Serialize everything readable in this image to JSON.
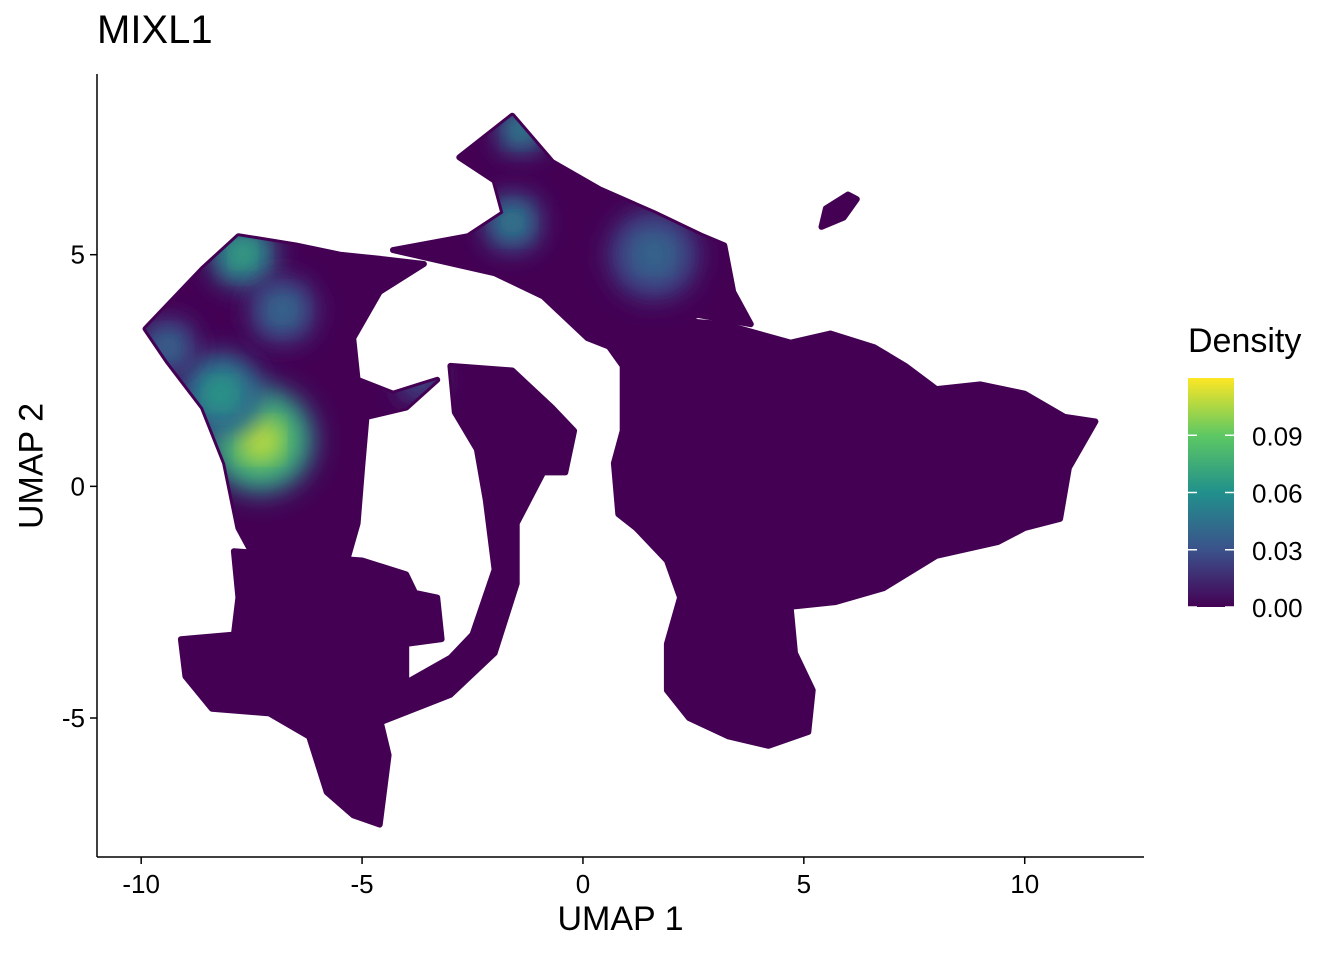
{
  "chart_data": {
    "type": "scatter",
    "title": "MIXL1",
    "xlabel": "UMAP 1",
    "ylabel": "UMAP 2",
    "xlim": [
      -11,
      12.7
    ],
    "ylim": [
      -8,
      8.9
    ],
    "x_ticks": [
      -10,
      -5,
      0,
      5,
      10
    ],
    "x_tick_labels": [
      "-10",
      "-5",
      "0",
      "5",
      "10"
    ],
    "y_ticks": [
      -5,
      0,
      5
    ],
    "y_tick_labels": [
      "-5",
      "0",
      "5"
    ],
    "grid": false,
    "legend": {
      "title": "Density",
      "placement": "right",
      "range": [
        0.0,
        0.12
      ],
      "ticks": [
        0.0,
        0.03,
        0.06,
        0.09
      ],
      "tick_labels": [
        "0.00",
        "0.03",
        "0.06",
        "0.09"
      ],
      "colormap": [
        "#440154",
        "#3b528b",
        "#21908c",
        "#5dc863",
        "#fde725"
      ]
    },
    "regions": [
      {
        "name": "left-fan",
        "density_peak": 0.12,
        "outline": [
          [
            -9.9,
            3.4
          ],
          [
            -8.6,
            4.7
          ],
          [
            -7.8,
            5.4
          ],
          [
            -6.5,
            5.2
          ],
          [
            -5.5,
            5.0
          ],
          [
            -4.5,
            4.9
          ],
          [
            -3.6,
            4.8
          ],
          [
            -4.6,
            4.2
          ],
          [
            -5.2,
            3.2
          ],
          [
            -5.1,
            2.3
          ],
          [
            -4.3,
            2.0
          ],
          [
            -3.3,
            2.3
          ],
          [
            -4.0,
            1.7
          ],
          [
            -4.9,
            1.5
          ],
          [
            -5.0,
            0.4
          ],
          [
            -5.1,
            -0.8
          ],
          [
            -5.4,
            -1.8
          ],
          [
            -7.4,
            -1.6
          ],
          [
            -7.8,
            -0.9
          ],
          [
            -8.1,
            0.5
          ],
          [
            -8.6,
            1.7
          ],
          [
            -9.4,
            2.7
          ]
        ]
      },
      {
        "name": "bottom-left-lobe",
        "density_peak": 0.01,
        "outline": [
          [
            -7.9,
            -1.4
          ],
          [
            -5.0,
            -1.6
          ],
          [
            -4.0,
            -1.9
          ],
          [
            -3.8,
            -2.3
          ],
          [
            -3.3,
            -2.4
          ],
          [
            -3.2,
            -3.3
          ],
          [
            -4.0,
            -3.4
          ],
          [
            -4.0,
            -4.4
          ],
          [
            -4.6,
            -5.0
          ],
          [
            -4.4,
            -5.8
          ],
          [
            -4.6,
            -7.3
          ],
          [
            -5.2,
            -7.1
          ],
          [
            -5.8,
            -6.6
          ],
          [
            -6.2,
            -5.4
          ],
          [
            -7.1,
            -4.9
          ],
          [
            -8.4,
            -4.8
          ],
          [
            -9.0,
            -4.1
          ],
          [
            -9.1,
            -3.3
          ],
          [
            -7.9,
            -3.2
          ],
          [
            -7.8,
            -2.4
          ]
        ]
      },
      {
        "name": "curved-arc",
        "density_peak": 0.01,
        "outline": [
          [
            -3.0,
            2.6
          ],
          [
            -1.6,
            2.5
          ],
          [
            -0.7,
            1.7
          ],
          [
            -0.2,
            1.2
          ],
          [
            -0.4,
            0.3
          ],
          [
            -0.9,
            0.3
          ],
          [
            -1.5,
            -0.8
          ],
          [
            -1.5,
            -2.1
          ],
          [
            -2.0,
            -3.6
          ],
          [
            -3.0,
            -4.5
          ],
          [
            -4.6,
            -5.1
          ],
          [
            -4.3,
            -4.4
          ],
          [
            -3.0,
            -3.7
          ],
          [
            -2.5,
            -3.2
          ],
          [
            -2.0,
            -1.8
          ],
          [
            -2.2,
            -0.3
          ],
          [
            -2.4,
            0.8
          ],
          [
            -2.9,
            1.6
          ]
        ]
      },
      {
        "name": "top-fan",
        "density_peak": 0.07,
        "outline": [
          [
            -4.3,
            5.1
          ],
          [
            -2.6,
            5.4
          ],
          [
            -1.8,
            5.9
          ],
          [
            -2.0,
            6.6
          ],
          [
            -2.8,
            7.1
          ],
          [
            -1.6,
            8.0
          ],
          [
            -0.7,
            7.0
          ],
          [
            0.4,
            6.4
          ],
          [
            1.6,
            5.9
          ],
          [
            2.7,
            5.4
          ],
          [
            3.2,
            5.2
          ],
          [
            3.4,
            4.2
          ],
          [
            3.8,
            3.5
          ],
          [
            2.6,
            3.7
          ],
          [
            1.6,
            3.3
          ],
          [
            0.9,
            2.9
          ],
          [
            0.1,
            3.2
          ],
          [
            -0.9,
            4.1
          ],
          [
            -2.0,
            4.6
          ]
        ]
      },
      {
        "name": "right-region",
        "density_peak": 0.01,
        "outline": [
          [
            0.3,
            3.4
          ],
          [
            1.9,
            3.6
          ],
          [
            3.2,
            3.5
          ],
          [
            4.7,
            3.1
          ],
          [
            5.6,
            3.3
          ],
          [
            6.6,
            3.0
          ],
          [
            7.3,
            2.6
          ],
          [
            8.0,
            2.1
          ],
          [
            9.0,
            2.2
          ],
          [
            10.0,
            2.0
          ],
          [
            10.9,
            1.5
          ],
          [
            11.6,
            1.4
          ],
          [
            11.0,
            0.4
          ],
          [
            10.8,
            -0.7
          ],
          [
            10.0,
            -0.9
          ],
          [
            9.4,
            -1.2
          ],
          [
            8.0,
            -1.5
          ],
          [
            6.8,
            -2.2
          ],
          [
            5.7,
            -2.5
          ],
          [
            4.7,
            -2.6
          ],
          [
            4.8,
            -3.6
          ],
          [
            5.2,
            -4.4
          ],
          [
            5.1,
            -5.3
          ],
          [
            4.2,
            -5.6
          ],
          [
            3.3,
            -5.4
          ],
          [
            2.4,
            -5.0
          ],
          [
            1.9,
            -4.4
          ],
          [
            1.9,
            -3.4
          ],
          [
            2.2,
            -2.4
          ],
          [
            1.9,
            -1.6
          ],
          [
            1.2,
            -0.9
          ],
          [
            0.8,
            -0.6
          ],
          [
            0.7,
            0.5
          ],
          [
            0.9,
            1.2
          ],
          [
            0.9,
            2.6
          ]
        ]
      },
      {
        "name": "small-cluster",
        "density_peak": 0.0,
        "outline": [
          [
            5.5,
            6.0
          ],
          [
            6.0,
            6.3
          ],
          [
            6.2,
            6.2
          ],
          [
            5.9,
            5.8
          ],
          [
            5.4,
            5.6
          ]
        ]
      }
    ],
    "hotspots": [
      {
        "x": -7.3,
        "y": 1.0,
        "density": 0.12,
        "radius": 1.2
      },
      {
        "x": -7.7,
        "y": 5.0,
        "density": 0.085,
        "radius": 0.7
      },
      {
        "x": -8.2,
        "y": 2.0,
        "density": 0.075,
        "radius": 0.9
      },
      {
        "x": -9.4,
        "y": 3.0,
        "density": 0.05,
        "radius": 0.6
      },
      {
        "x": -6.8,
        "y": 3.8,
        "density": 0.05,
        "radius": 0.7
      },
      {
        "x": -1.4,
        "y": 7.7,
        "density": 0.07,
        "radius": 0.5
      },
      {
        "x": -1.6,
        "y": 5.7,
        "density": 0.065,
        "radius": 0.6
      },
      {
        "x": 1.6,
        "y": 5.0,
        "density": 0.045,
        "radius": 1.0
      },
      {
        "x": -3.7,
        "y": 2.3,
        "density": 0.035,
        "radius": 0.5
      }
    ]
  }
}
